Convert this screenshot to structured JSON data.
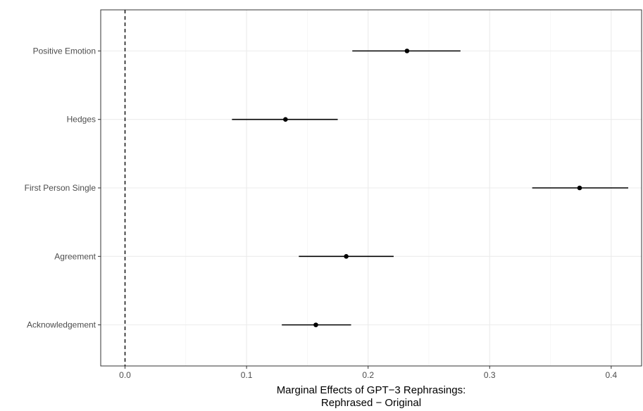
{
  "chart_data": {
    "type": "scatter",
    "title": "",
    "xlabel_lines": [
      "Marginal Effects of GPT−3 Rephrasings:",
      "Rephrased − Original"
    ],
    "ylabel": "",
    "xlim": [
      -0.02,
      0.425
    ],
    "x_ticks": [
      0.0,
      0.1,
      0.2,
      0.3,
      0.4
    ],
    "x_tick_labels": [
      "0.0",
      "0.1",
      "0.2",
      "0.3",
      "0.4"
    ],
    "reference_line": {
      "x": 0,
      "style": "dashed"
    },
    "grid": true,
    "categories": [
      "Positive Emotion",
      "Hedges",
      "First Person Single",
      "Agreement",
      "Acknowledgement"
    ],
    "estimates": [
      0.232,
      0.132,
      0.374,
      0.182,
      0.157
    ],
    "ci_low": [
      0.187,
      0.088,
      0.335,
      0.143,
      0.129
    ],
    "ci_high": [
      0.276,
      0.175,
      0.414,
      0.221,
      0.186
    ]
  }
}
